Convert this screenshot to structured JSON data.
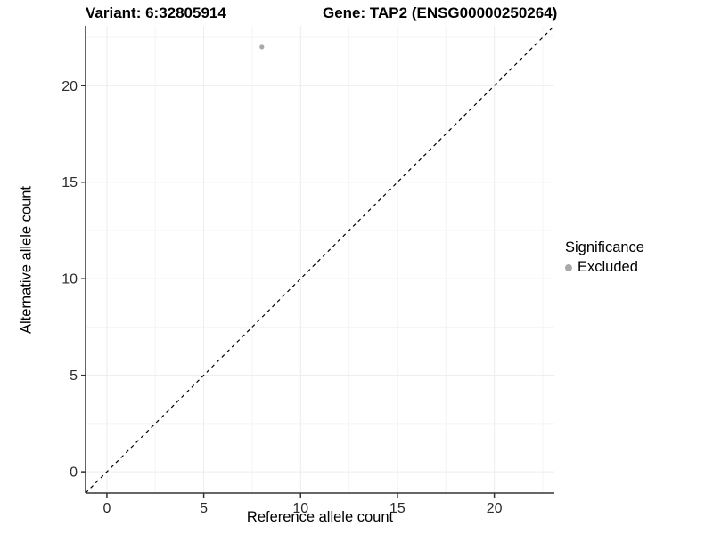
{
  "chart_data": {
    "type": "scatter",
    "title_variant": "Variant: 6:32805914",
    "title_gene": "Gene: TAP2 (ENSG00000250264)",
    "xlabel": "Reference allele count",
    "ylabel": "Alternative allele count",
    "xlim": [
      -1.1,
      23.1
    ],
    "ylim": [
      -1.1,
      23.1
    ],
    "major_ticks": [
      0,
      5,
      10,
      15,
      20
    ],
    "minor_ticks": [
      2.5,
      7.5,
      12.5,
      17.5,
      22.5
    ],
    "grid": true,
    "reference_line": {
      "type": "identity",
      "from": -1.1,
      "to": 23.1,
      "style": "dashed",
      "color": "#000000"
    },
    "series": [
      {
        "name": "Excluded",
        "color": "#a9a9a9",
        "points": [
          {
            "x": 8,
            "y": 22
          }
        ]
      }
    ],
    "legend": {
      "title": "Significance",
      "position": "right",
      "items": [
        {
          "label": "Excluded",
          "color": "#a9a9a9"
        }
      ]
    },
    "colors": {
      "background": "#ffffff",
      "grid_major": "#ececec",
      "grid_minor": "#f4f4f4",
      "axis": "#333333",
      "tick_text": "#2b2b2b"
    }
  }
}
